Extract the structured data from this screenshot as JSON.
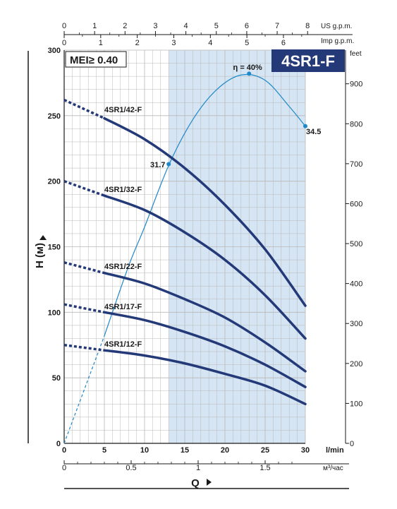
{
  "chart_data": {
    "type": "line",
    "title": "4SR1-F",
    "badge": "MEI≥ 0.40",
    "x": {
      "label": "Q",
      "unit": "l/min",
      "range": [
        0,
        30
      ],
      "ticks": [
        0,
        5,
        10,
        15,
        20,
        25,
        30
      ]
    },
    "x_m3h": {
      "unit": "м³/час",
      "range": [
        0,
        1.8
      ],
      "ticks": [
        "0",
        "0.5",
        "1",
        "1.5"
      ],
      "tick_values": [
        0,
        0.5,
        1,
        1.5
      ]
    },
    "x_us": {
      "unit": "US g.p.m.",
      "ticks": [
        0,
        1,
        2,
        3,
        4,
        5,
        6,
        7,
        8
      ]
    },
    "x_imp": {
      "unit": "Imp g.p.m.",
      "ticks": [
        0,
        1,
        2,
        3,
        4,
        5,
        6
      ]
    },
    "y": {
      "label": "H (м)",
      "range": [
        0,
        300
      ],
      "ticks": [
        0,
        50,
        100,
        150,
        200,
        250,
        300
      ]
    },
    "y_feet": {
      "unit": "feet",
      "range": [
        0,
        984
      ],
      "ticks": [
        0,
        100,
        200,
        300,
        400,
        500,
        600,
        700,
        800,
        900
      ]
    },
    "recommended_range": [
      13,
      30
    ],
    "grid": true,
    "series": [
      {
        "name": "4SR1/42-F",
        "dashed": {
          "x": [
            0,
            5
          ],
          "y": [
            262,
            248
          ]
        },
        "x": [
          5,
          10,
          15,
          20,
          25,
          30
        ],
        "y": [
          248,
          232,
          210,
          182,
          148,
          105
        ]
      },
      {
        "name": "4SR1/32-F",
        "dashed": {
          "x": [
            0,
            5
          ],
          "y": [
            200,
            189
          ]
        },
        "x": [
          5,
          10,
          15,
          20,
          25,
          30
        ],
        "y": [
          189,
          178,
          161,
          140,
          113,
          80
        ]
      },
      {
        "name": "4SR1/22-F",
        "dashed": {
          "x": [
            0,
            5
          ],
          "y": [
            138,
            130
          ]
        },
        "x": [
          5,
          10,
          15,
          20,
          25,
          30
        ],
        "y": [
          130,
          122,
          110,
          96,
          77,
          55
        ]
      },
      {
        "name": "4SR1/17-F",
        "dashed": {
          "x": [
            0,
            5
          ],
          "y": [
            106,
            100
          ]
        },
        "x": [
          5,
          10,
          15,
          20,
          25,
          30
        ],
        "y": [
          100,
          94,
          85,
          74,
          60,
          43
        ]
      },
      {
        "name": "4SR1/12-F",
        "dashed": {
          "x": [
            0,
            5
          ],
          "y": [
            75,
            71
          ]
        },
        "x": [
          5,
          10,
          15,
          20,
          25,
          30
        ],
        "y": [
          71,
          67,
          61,
          53,
          44,
          30
        ]
      }
    ],
    "efficiency": {
      "label": "η = 40%",
      "dashed": {
        "x": [
          0,
          5
        ],
        "y": [
          0,
          82
        ]
      },
      "x": [
        5,
        8,
        10,
        13,
        16,
        19,
        22,
        25,
        28,
        30
      ],
      "y": [
        82,
        135,
        165,
        212,
        247,
        270,
        281,
        277,
        257,
        242
      ],
      "points": [
        {
          "x": 13,
          "y": 213,
          "label": "31.7"
        },
        {
          "x": 23,
          "y": 282,
          "label": ""
        },
        {
          "x": 30,
          "y": 242,
          "label": "34.5"
        }
      ]
    },
    "colors": {
      "curve": "#233978",
      "efficiency": "#1f88c8",
      "band": "#d5e5f3",
      "grid": "#b8b8b8",
      "badge_bg": "#233978",
      "badge_fg": "#ffffff"
    }
  }
}
